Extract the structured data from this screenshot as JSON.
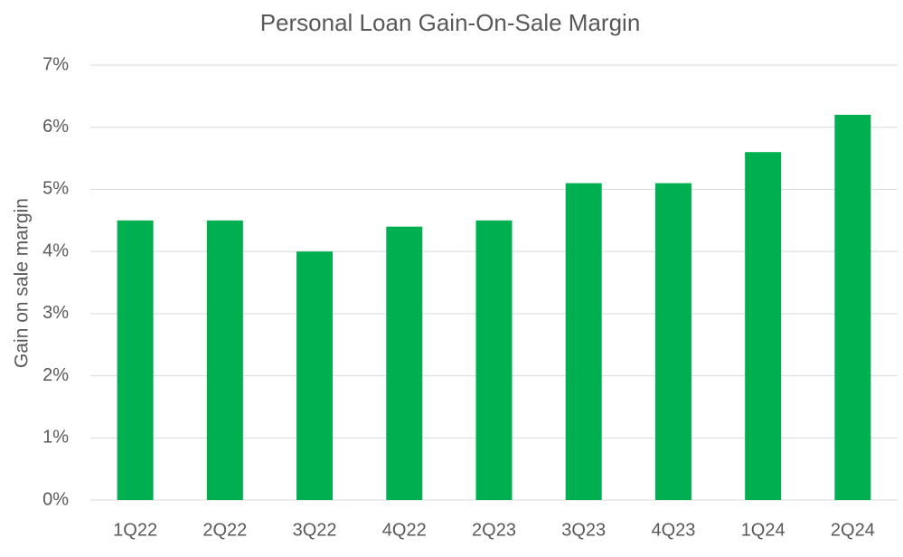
{
  "chart_data": {
    "type": "bar",
    "title": "Personal Loan Gain-On-Sale Margin",
    "y_label": "Gain on sale margin",
    "categories": [
      "1Q22",
      "2Q22",
      "3Q22",
      "4Q22",
      "2Q23",
      "3Q23",
      "4Q23",
      "1Q24",
      "2Q24"
    ],
    "values": [
      4.5,
      4.5,
      4.0,
      4.4,
      4.5,
      5.1,
      5.1,
      5.6,
      6.2
    ],
    "color": "#00b050",
    "ylim": [
      0,
      7
    ],
    "yticks": [
      {
        "value": 0,
        "label": "0%"
      },
      {
        "value": 1,
        "label": "1%"
      },
      {
        "value": 2,
        "label": "2%"
      },
      {
        "value": 3,
        "label": "3%"
      },
      {
        "value": 4,
        "label": "4%"
      },
      {
        "value": 5,
        "label": "5%"
      },
      {
        "value": 6,
        "label": "6%"
      },
      {
        "value": 7,
        "label": "7%"
      }
    ],
    "grid": true
  }
}
